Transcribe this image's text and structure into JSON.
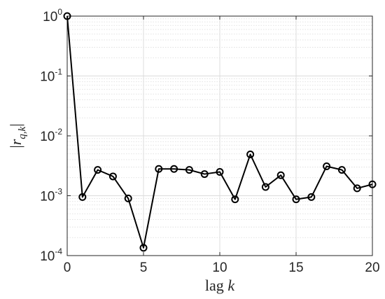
{
  "chart_data": {
    "type": "line",
    "xlabel": "lag k",
    "ylabel": "|r_{q,k}|",
    "xlim": [
      0,
      20
    ],
    "ylim": [
      0.0001,
      1
    ],
    "yscale": "log",
    "grid": true,
    "minor_grid": true,
    "x_ticks": [
      "0",
      "5",
      "10",
      "15",
      "20"
    ],
    "y_ticks": [
      {
        "base": "10",
        "exp": "0"
      },
      {
        "base": "10",
        "exp": "-1"
      },
      {
        "base": "10",
        "exp": "-2"
      },
      {
        "base": "10",
        "exp": "-3"
      },
      {
        "base": "10",
        "exp": "-4"
      }
    ],
    "series": [
      {
        "color": "#000000",
        "marker": "circle",
        "x": [
          0,
          1,
          2,
          3,
          4,
          5,
          6,
          7,
          8,
          9,
          10,
          11,
          12,
          13,
          14,
          15,
          16,
          17,
          18,
          19,
          20
        ],
        "y": [
          1.0,
          0.00095,
          0.0027,
          0.0021,
          0.0009,
          0.000135,
          0.0028,
          0.0028,
          0.0027,
          0.0023,
          0.0025,
          0.00087,
          0.0049,
          0.0014,
          0.0022,
          0.00087,
          0.00095,
          0.0031,
          0.0027,
          0.00133,
          0.00155
        ]
      }
    ]
  }
}
